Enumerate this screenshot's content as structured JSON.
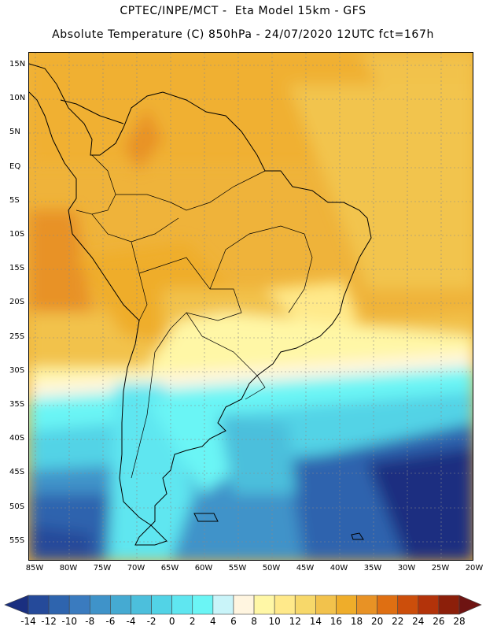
{
  "header": {
    "title_line1": "CPTEC/INPE/MCT -  Eta Model 15km - GFS",
    "title_line2": "Absolute Temperature (C) 850hPa - 24/07/2020 12UTC fct=167h"
  },
  "map": {
    "lat_labels": [
      "15N",
      "10N",
      "5N",
      "EQ",
      "5S",
      "10S",
      "15S",
      "20S",
      "25S",
      "30S",
      "35S",
      "40S",
      "45S",
      "50S",
      "55S"
    ],
    "lon_labels": [
      "85W",
      "80W",
      "75W",
      "70W",
      "65W",
      "60W",
      "55W",
      "50W",
      "45W",
      "40W",
      "35W",
      "30W",
      "25W",
      "20W"
    ],
    "region": "South America",
    "gridlines": true
  },
  "colorbar": {
    "tick_labels": [
      "-14",
      "-12",
      "-10",
      "-8",
      "-6",
      "-4",
      "-2",
      "0",
      "2",
      "4",
      "6",
      "8",
      "10",
      "12",
      "14",
      "16",
      "18",
      "20",
      "22",
      "24",
      "26",
      "28"
    ],
    "colors": [
      "#1a2f80",
      "#254a9a",
      "#2e64ae",
      "#3a7bbf",
      "#3f93c9",
      "#45aad2",
      "#4cbfdc",
      "#52d3e6",
      "#5fe6f0",
      "#6bf5f5",
      "#c9f4f9",
      "#fff5e0",
      "#fff7a6",
      "#ffe98a",
      "#f7d86a",
      "#f2c24c",
      "#efad2a",
      "#e89225",
      "#df6f12",
      "#cc4e0b",
      "#b3330a",
      "#8c1f0a",
      "#6e1412"
    ]
  }
}
